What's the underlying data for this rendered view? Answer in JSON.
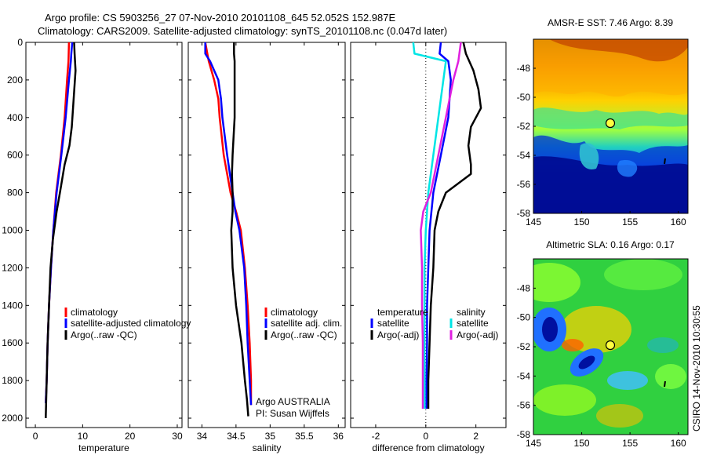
{
  "header": {
    "line1": "Argo profile: CS 5903256_27 07-Nov-2010 20101108_645 52.052S 152.987E",
    "line2": "Climatology: CARS2009. Satellite-adjusted climatology: synTS_20101108.nc (0.047d later)"
  },
  "side_label": "CSIRO 14-Nov-2010 10:30:55",
  "colors": {
    "climatology": "#ff0000",
    "satellite": "#0000ff",
    "argo": "#000000",
    "salinity_satellite": "#00e5e5",
    "salinity_argo": "#e020e0",
    "zero_line": "#000000"
  },
  "chart_data": [
    {
      "type": "line",
      "xlabel": "temperature",
      "ylabel": "",
      "xlim": [
        -2,
        31
      ],
      "ylim": [
        2050,
        0
      ],
      "xticks": [
        0,
        10,
        20,
        30
      ],
      "yticks": [
        0,
        200,
        400,
        600,
        800,
        1000,
        1200,
        1400,
        1600,
        1800,
        2000
      ],
      "legend": [
        "climatology",
        "satellite-adjusted climatology",
        "Argo(..raw -QC)"
      ],
      "legend_position": "lower-right",
      "series": [
        {
          "name": "climatology",
          "color": "#ff0000",
          "points": [
            [
              7.1,
              0
            ],
            [
              7.0,
              100
            ],
            [
              6.7,
              200
            ],
            [
              6.2,
              400
            ],
            [
              5.4,
              600
            ],
            [
              4.4,
              800
            ],
            [
              3.8,
              1000
            ],
            [
              3.3,
              1200
            ],
            [
              2.9,
              1400
            ],
            [
              2.6,
              1600
            ],
            [
              2.4,
              1800
            ],
            [
              2.2,
              1920
            ]
          ]
        },
        {
          "name": "satellite-adjusted climatology",
          "color": "#0000ff",
          "points": [
            [
              7.8,
              0
            ],
            [
              7.6,
              60
            ],
            [
              7.5,
              100
            ],
            [
              7.1,
              200
            ],
            [
              6.4,
              400
            ],
            [
              5.5,
              600
            ],
            [
              4.5,
              800
            ],
            [
              3.8,
              1000
            ],
            [
              3.3,
              1200
            ],
            [
              2.9,
              1400
            ],
            [
              2.6,
              1600
            ],
            [
              2.4,
              1800
            ],
            [
              2.2,
              1920
            ]
          ]
        },
        {
          "name": "Argo(..raw -QC)",
          "color": "#000000",
          "points": [
            [
              8.2,
              0
            ],
            [
              8.3,
              60
            ],
            [
              8.5,
              150
            ],
            [
              8.1,
              300
            ],
            [
              7.7,
              450
            ],
            [
              7.2,
              550
            ],
            [
              6.2,
              650
            ],
            [
              5.2,
              800
            ],
            [
              4.5,
              900
            ],
            [
              3.7,
              1050
            ],
            [
              3.2,
              1200
            ],
            [
              2.9,
              1400
            ],
            [
              2.6,
              1600
            ],
            [
              2.4,
              1800
            ],
            [
              2.3,
              1900
            ],
            [
              2.2,
              2000
            ]
          ]
        }
      ]
    },
    {
      "type": "line",
      "xlabel": "salinity",
      "ylabel": "",
      "xlim": [
        33.8,
        36.1
      ],
      "ylim": [
        2050,
        0
      ],
      "xticks": [
        34,
        34.5,
        35,
        35.5,
        36
      ],
      "yticks": [
        0,
        200,
        400,
        600,
        800,
        1000,
        1200,
        1400,
        1600,
        1800,
        2000
      ],
      "legend": [
        "climatology",
        "satellite adj. clim.",
        "Argo(..raw -QC)"
      ],
      "legend_position": "lower-right",
      "annotations": [
        "Argo AUSTRALIA",
        "PI: Susan Wijffels"
      ],
      "series": [
        {
          "name": "climatology",
          "color": "#ff0000",
          "points": [
            [
              34.05,
              0
            ],
            [
              34.1,
              100
            ],
            [
              34.18,
              200
            ],
            [
              34.24,
              300
            ],
            [
              34.26,
              400
            ],
            [
              34.32,
              600
            ],
            [
              34.42,
              800
            ],
            [
              34.5,
              900
            ],
            [
              34.57,
              1000
            ],
            [
              34.63,
              1200
            ],
            [
              34.67,
              1400
            ],
            [
              34.7,
              1600
            ],
            [
              34.72,
              1800
            ],
            [
              34.72,
              1930
            ]
          ]
        },
        {
          "name": "satellite adj. clim.",
          "color": "#0000ff",
          "points": [
            [
              34.05,
              0
            ],
            [
              34.05,
              60
            ],
            [
              34.12,
              100
            ],
            [
              34.24,
              200
            ],
            [
              34.28,
              300
            ],
            [
              34.3,
              400
            ],
            [
              34.37,
              600
            ],
            [
              34.45,
              800
            ],
            [
              34.49,
              900
            ],
            [
              34.55,
              1000
            ],
            [
              34.62,
              1200
            ],
            [
              34.65,
              1400
            ],
            [
              34.67,
              1600
            ],
            [
              34.7,
              1800
            ],
            [
              34.72,
              1930
            ]
          ]
        },
        {
          "name": "Argo(..raw -QC)",
          "color": "#000000",
          "points": [
            [
              34.47,
              0
            ],
            [
              34.47,
              60
            ],
            [
              34.48,
              100
            ],
            [
              34.48,
              250
            ],
            [
              34.48,
              400
            ],
            [
              34.45,
              600
            ],
            [
              34.44,
              700
            ],
            [
              34.45,
              800
            ],
            [
              34.45,
              900
            ],
            [
              34.43,
              1000
            ],
            [
              34.45,
              1200
            ],
            [
              34.5,
              1400
            ],
            [
              34.58,
              1600
            ],
            [
              34.63,
              1800
            ],
            [
              34.66,
              1900
            ],
            [
              34.68,
              1990
            ]
          ]
        }
      ]
    },
    {
      "type": "line",
      "xlabel": "difference from climatology",
      "ylabel": "",
      "xlim": [
        -3,
        3.2
      ],
      "ylim": [
        2050,
        0
      ],
      "xticks": [
        -2,
        0,
        2
      ],
      "yticks": [
        0,
        200,
        400,
        600,
        800,
        1000,
        1200,
        1400,
        1600,
        1800,
        2000
      ],
      "legend_groups": {
        "temperature": [
          "satellite",
          "Argo(-adj)"
        ],
        "salinity": [
          "satellite",
          "Argo(-adj)"
        ]
      },
      "legend_position": "lower-center",
      "series": [
        {
          "name": "temperature satellite",
          "color": "#0000ff",
          "points": [
            [
              0.6,
              0
            ],
            [
              0.55,
              60
            ],
            [
              0.9,
              100
            ],
            [
              1.0,
              200
            ],
            [
              0.9,
              400
            ],
            [
              0.6,
              600
            ],
            [
              0.3,
              800
            ],
            [
              0.15,
              1000
            ],
            [
              0.1,
              1200
            ],
            [
              0.05,
              1400
            ],
            [
              0.05,
              1600
            ],
            [
              0.03,
              1800
            ],
            [
              0.03,
              1950
            ]
          ]
        },
        {
          "name": "temperature Argo(-adj)",
          "color": "#000000",
          "points": [
            [
              1.5,
              0
            ],
            [
              1.6,
              60
            ],
            [
              1.9,
              150
            ],
            [
              2.1,
              250
            ],
            [
              2.2,
              350
            ],
            [
              1.8,
              450
            ],
            [
              1.7,
              550
            ],
            [
              1.8,
              650
            ],
            [
              1.8,
              700
            ],
            [
              0.8,
              800
            ],
            [
              0.5,
              900
            ],
            [
              0.35,
              1000
            ],
            [
              0.3,
              1200
            ],
            [
              0.2,
              1400
            ],
            [
              0.15,
              1600
            ],
            [
              0.1,
              1800
            ],
            [
              0.1,
              1950
            ]
          ]
        },
        {
          "name": "salinity satellite",
          "color": "#00e5e5",
          "points": [
            [
              -0.5,
              0
            ],
            [
              -0.45,
              60
            ],
            [
              0.8,
              100
            ],
            [
              0.7,
              200
            ],
            [
              0.5,
              400
            ],
            [
              0.3,
              600
            ],
            [
              0.1,
              800
            ],
            [
              0.0,
              1000
            ],
            [
              -0.05,
              1200
            ],
            [
              -0.05,
              1400
            ],
            [
              -0.05,
              1600
            ],
            [
              -0.05,
              1800
            ],
            [
              -0.05,
              1950
            ]
          ]
        },
        {
          "name": "salinity Argo(-adj)",
          "color": "#e020e0",
          "points": [
            [
              1.4,
              0
            ],
            [
              1.3,
              100
            ],
            [
              1.1,
              200
            ],
            [
              0.8,
              400
            ],
            [
              0.5,
              600
            ],
            [
              0.2,
              800
            ],
            [
              -0.1,
              900
            ],
            [
              -0.2,
              1000
            ],
            [
              -0.15,
              1200
            ],
            [
              -0.15,
              1400
            ],
            [
              -0.12,
              1600
            ],
            [
              -0.12,
              1800
            ],
            [
              -0.12,
              1950
            ]
          ]
        }
      ]
    },
    {
      "type": "heatmap",
      "title": "AMSR-E SST: 7.46 Argo: 8.39",
      "xlim": [
        145,
        161
      ],
      "ylim": [
        -58,
        -46
      ],
      "xticks": [
        145,
        150,
        155,
        160
      ],
      "yticks": [
        -48,
        -50,
        -52,
        -54,
        -56,
        -58
      ],
      "float_position": [
        152.987,
        -52.052
      ]
    },
    {
      "type": "heatmap",
      "title": "Altimetric SLA: 0.16 Argo: 0.17",
      "xlim": [
        145,
        161
      ],
      "ylim": [
        -58,
        -46
      ],
      "xticks": [
        145,
        150,
        155,
        160
      ],
      "yticks": [
        -48,
        -50,
        -52,
        -54,
        -56,
        -58
      ],
      "float_position": [
        152.987,
        -52.052
      ]
    }
  ]
}
